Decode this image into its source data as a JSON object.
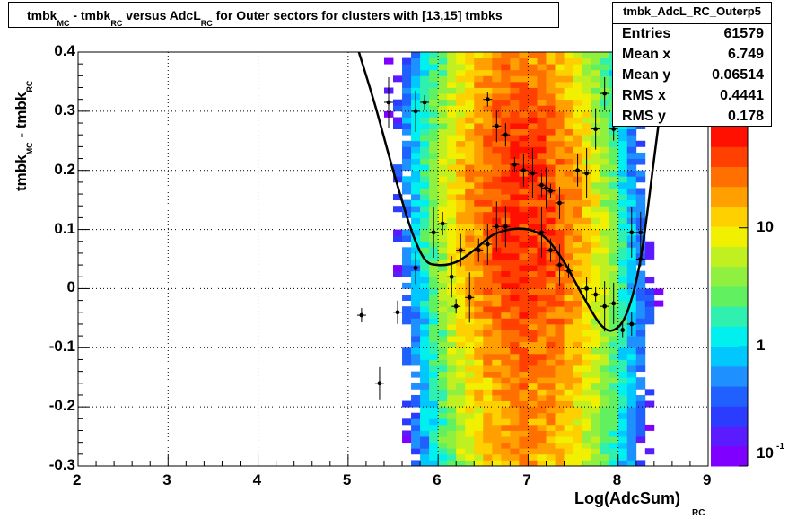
{
  "chart_data": {
    "type": "heatmap",
    "title_parts": [
      "tmbk",
      "MC",
      " - tmbk",
      "RC",
      " versus AdcL",
      "RC",
      " for Outer sectors for clusters with [13,15] tmbks"
    ],
    "xlabel": "Log(AdcSum)",
    "xlabel_sub": "RC",
    "ylabel_parts": [
      "tmbk",
      "MC",
      " - tmbk",
      "RC"
    ],
    "xlim": [
      2,
      9
    ],
    "ylim": [
      -0.3,
      0.4
    ],
    "xticks": [
      "2",
      "3",
      "4",
      "5",
      "6",
      "7",
      "8",
      "9"
    ],
    "yticks": [
      "-0.3",
      "-0.2",
      "-0.1",
      "0",
      "0.1",
      "0.2",
      "0.3",
      "0.4"
    ],
    "z_scale": "log",
    "zticks": [
      "10",
      "1",
      "10"
    ],
    "ztick_exp": "-1",
    "stats": {
      "name": "tmbk_AdcL_RC_Outerp5",
      "rows": [
        {
          "label": "Entries",
          "value": "61579"
        },
        {
          "label": "Mean x",
          "value": "6.749"
        },
        {
          "label": "Mean y",
          "value": "0.06514"
        },
        {
          "label": "RMS x",
          "value": "0.4441"
        },
        {
          "label": "RMS y",
          "value": "0.178"
        }
      ]
    },
    "profile_points": [
      {
        "x": 5.15,
        "y": -0.045
      },
      {
        "x": 5.35,
        "y": -0.16
      },
      {
        "x": 5.45,
        "y": 0.315
      },
      {
        "x": 5.55,
        "y": -0.04
      },
      {
        "x": 5.75,
        "y": 0.3
      },
      {
        "x": 5.85,
        "y": 0.315
      },
      {
        "x": 5.75,
        "y": 0.035
      },
      {
        "x": 5.95,
        "y": 0.095
      },
      {
        "x": 6.05,
        "y": 0.11
      },
      {
        "x": 6.15,
        "y": 0.02
      },
      {
        "x": 6.2,
        "y": -0.03
      },
      {
        "x": 6.25,
        "y": 0.065
      },
      {
        "x": 6.35,
        "y": -0.015
      },
      {
        "x": 6.45,
        "y": 0.065
      },
      {
        "x": 6.55,
        "y": 0.075
      },
      {
        "x": 6.55,
        "y": 0.32
      },
      {
        "x": 6.65,
        "y": 0.275
      },
      {
        "x": 6.65,
        "y": 0.105
      },
      {
        "x": 6.75,
        "y": 0.26
      },
      {
        "x": 6.75,
        "y": 0.105
      },
      {
        "x": 6.85,
        "y": 0.21
      },
      {
        "x": 6.95,
        "y": 0.2
      },
      {
        "x": 7.05,
        "y": 0.195
      },
      {
        "x": 7.15,
        "y": 0.175
      },
      {
        "x": 7.2,
        "y": 0.17
      },
      {
        "x": 7.25,
        "y": 0.165
      },
      {
        "x": 7.35,
        "y": 0.145
      },
      {
        "x": 7.15,
        "y": 0.095
      },
      {
        "x": 7.25,
        "y": 0.065
      },
      {
        "x": 7.35,
        "y": 0.04
      },
      {
        "x": 7.45,
        "y": 0.03
      },
      {
        "x": 7.55,
        "y": 0.2
      },
      {
        "x": 7.65,
        "y": 0.195
      },
      {
        "x": 7.65,
        "y": 0.0
      },
      {
        "x": 7.75,
        "y": 0.27
      },
      {
        "x": 7.75,
        "y": -0.01
      },
      {
        "x": 7.85,
        "y": 0.33
      },
      {
        "x": 7.85,
        "y": -0.03
      },
      {
        "x": 7.95,
        "y": 0.27
      },
      {
        "x": 7.95,
        "y": -0.025
      },
      {
        "x": 8.05,
        "y": -0.07
      },
      {
        "x": 8.05,
        "y": 0.35
      },
      {
        "x": 8.15,
        "y": 0.095
      },
      {
        "x": 8.15,
        "y": -0.06
      },
      {
        "x": 8.25,
        "y": 0.095
      },
      {
        "x": 8.25,
        "y": 0.05
      }
    ],
    "fit_curve": [
      {
        "x": 5.12,
        "y": 0.4
      },
      {
        "x": 5.3,
        "y": 0.31
      },
      {
        "x": 5.5,
        "y": 0.2
      },
      {
        "x": 5.7,
        "y": 0.1
      },
      {
        "x": 5.85,
        "y": 0.05
      },
      {
        "x": 6.0,
        "y": 0.04
      },
      {
        "x": 6.2,
        "y": 0.045
      },
      {
        "x": 6.4,
        "y": 0.065
      },
      {
        "x": 6.6,
        "y": 0.09
      },
      {
        "x": 6.8,
        "y": 0.1
      },
      {
        "x": 7.0,
        "y": 0.1
      },
      {
        "x": 7.2,
        "y": 0.085
      },
      {
        "x": 7.4,
        "y": 0.045
      },
      {
        "x": 7.6,
        "y": -0.01
      },
      {
        "x": 7.8,
        "y": -0.06
      },
      {
        "x": 7.95,
        "y": -0.07
      },
      {
        "x": 8.1,
        "y": -0.04
      },
      {
        "x": 8.25,
        "y": 0.05
      },
      {
        "x": 8.4,
        "y": 0.22
      },
      {
        "x": 8.55,
        "y": 0.4
      }
    ],
    "density": {
      "x_range": [
        5.1,
        8.5
      ],
      "y_range": [
        -0.3,
        0.4
      ],
      "center_x": 6.95,
      "band_sigma_x": 0.42,
      "peak_max_count": 60,
      "density_ridge": [
        {
          "x": 5.2,
          "y": 0.3
        },
        {
          "x": 6.0,
          "y": 0.15
        },
        {
          "x": 6.8,
          "y": 0.14
        },
        {
          "x": 7.4,
          "y": 0.1
        },
        {
          "x": 8.2,
          "y": 0.0
        }
      ]
    }
  }
}
